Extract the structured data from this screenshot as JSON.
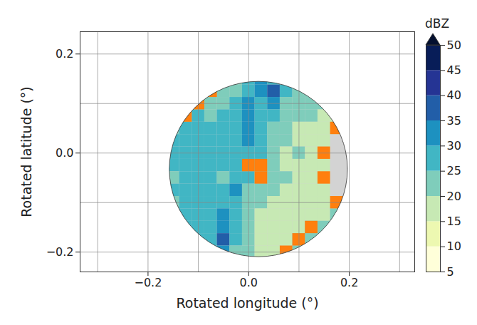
{
  "chart_data": {
    "type": "heatmap",
    "x_label": "Rotated longitude (°)",
    "y_label": "Rotated latitude (°)",
    "xlim": [
      -0.335,
      0.33
    ],
    "ylim": [
      -0.24,
      0.245
    ],
    "xticks": [
      {
        "value": -0.2,
        "label": "−0.2"
      },
      {
        "value": 0,
        "label": "0.0"
      },
      {
        "value": 0.2,
        "label": "0.2"
      }
    ],
    "yticks": [
      {
        "value": -0.2,
        "label": "−0.2"
      },
      {
        "value": 0,
        "label": "0.0"
      },
      {
        "value": 0.2,
        "label": "0.2"
      }
    ],
    "xminor": [
      -0.3,
      -0.1,
      0.1,
      0.3
    ],
    "yminor": [
      -0.1,
      0.1
    ],
    "grid": true,
    "radar_range": {
      "center": [
        0.02,
        -0.033
      ],
      "radius": 0.177,
      "color": "#d3d3d3"
    },
    "x": [
      -0.15,
      -0.125,
      -0.1,
      -0.075,
      -0.05,
      -0.025,
      0,
      0.025,
      0.05,
      0.075,
      0.1,
      0.125,
      0.15,
      0.175,
      0.2
    ],
    "y": [
      0.15,
      0.125,
      0.1,
      0.075,
      0.05,
      0.025,
      0,
      -0.025,
      -0.05,
      -0.075,
      -0.1,
      -0.125,
      -0.15,
      -0.175,
      -0.2
    ],
    "cells": [
      [
        null,
        null,
        null,
        null,
        null,
        24,
        26,
        30,
        28,
        null,
        null,
        null,
        null,
        null,
        null
      ],
      [
        null,
        null,
        null,
        22,
        22,
        24,
        27,
        30,
        36,
        27,
        23,
        22,
        null,
        null,
        null
      ],
      [
        null,
        null,
        22,
        23,
        24,
        25,
        30,
        28,
        30,
        24,
        22,
        20,
        20,
        null,
        null
      ],
      [
        null,
        24,
        25,
        24,
        25,
        27,
        31,
        27,
        26,
        22,
        21,
        20,
        18,
        18,
        null
      ],
      [
        24,
        26,
        27,
        25,
        26,
        28,
        32,
        27,
        24,
        21,
        19,
        19,
        18,
        17,
        null
      ],
      [
        25,
        27,
        28,
        26,
        25,
        27,
        30,
        26,
        22,
        20,
        19,
        18,
        17,
        null,
        null
      ],
      [
        26,
        27,
        26,
        25,
        26,
        28,
        29,
        25,
        21,
        19,
        20,
        18,
        17,
        null,
        null
      ],
      [
        25,
        26,
        27,
        26,
        25,
        27,
        26,
        24,
        20,
        19,
        18,
        18,
        17,
        null,
        null
      ],
      [
        24,
        25,
        26,
        26,
        24,
        28,
        25,
        23,
        21,
        20,
        18,
        17,
        16,
        null,
        null
      ],
      [
        25,
        26,
        27,
        26,
        26,
        30,
        24,
        21,
        20,
        19,
        18,
        17,
        18,
        null,
        null
      ],
      [
        24,
        26,
        27,
        27,
        28,
        29,
        22,
        20,
        19,
        18,
        18,
        17,
        17,
        18,
        null
      ],
      [
        24,
        25,
        26,
        28,
        30,
        27,
        21,
        19,
        18,
        18,
        17,
        17,
        18,
        20,
        null
      ],
      [
        null,
        25,
        27,
        29,
        32,
        26,
        20,
        18,
        17,
        17,
        18,
        20,
        22,
        22,
        null
      ],
      [
        null,
        null,
        26,
        28,
        36,
        25,
        20,
        18,
        17,
        18,
        20,
        22,
        22,
        null,
        null
      ],
      [
        null,
        null,
        null,
        26,
        30,
        24,
        20,
        18,
        17,
        18,
        20,
        null,
        null,
        null,
        null
      ]
    ],
    "clutter": {
      "color": "#ff7f0e",
      "cells": [
        [
          -0.075,
          0.125
        ],
        [
          -0.1,
          0.1
        ],
        [
          -0.125,
          0.075
        ],
        [
          0,
          -0.025
        ],
        [
          0.025,
          -0.025
        ],
        [
          0.025,
          -0.05
        ],
        [
          0.175,
          0.05
        ],
        [
          0.15,
          0
        ],
        [
          0.15,
          -0.05
        ],
        [
          0.175,
          -0.1
        ],
        [
          0.075,
          -0.2
        ],
        [
          0.1,
          -0.175
        ],
        [
          0.125,
          -0.15
        ]
      ]
    },
    "colorbar": {
      "label": "dBZ",
      "range": [
        5,
        50
      ],
      "ticks": [
        5,
        10,
        15,
        20,
        25,
        30,
        35,
        40,
        45,
        50
      ]
    },
    "colors": [
      "#ffffd9",
      "#edf8b1",
      "#c7e9b4",
      "#7fcdbb",
      "#41b6c4",
      "#1d91c0",
      "#225ea8",
      "#253494",
      "#081d58",
      "#041030"
    ]
  }
}
